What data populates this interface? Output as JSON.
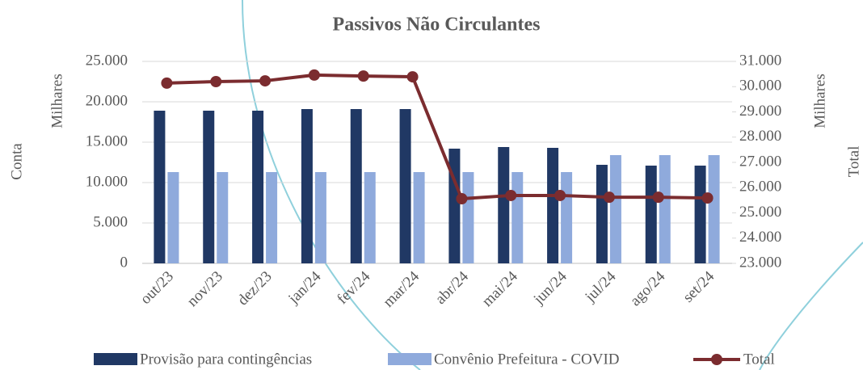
{
  "chart_data": {
    "type": "combo",
    "title": "Passivos Não Circulantes",
    "y_label": "Conta",
    "y_units": "Milhares",
    "y2_label": "Total",
    "y2_units": "Milhares",
    "categories": [
      "out/23",
      "nov/23",
      "dez/23",
      "jan/24",
      "fev/24",
      "mar/24",
      "abr/24",
      "mai/24",
      "jun/24",
      "jul/24",
      "ago/24",
      "set/24"
    ],
    "series": [
      {
        "name": "Provisão para contingências",
        "type": "bar",
        "color": "#203864",
        "values": [
          18900,
          18900,
          18900,
          19100,
          19100,
          19100,
          14200,
          14400,
          14300,
          12200,
          12100,
          12100
        ]
      },
      {
        "name": "Convênio Prefeitura - COVID",
        "type": "bar",
        "color": "#8faadc",
        "values": [
          11300,
          11300,
          11300,
          11300,
          11300,
          11300,
          11300,
          11300,
          11300,
          13400,
          13400,
          13400
        ]
      },
      {
        "name": "Total",
        "type": "line",
        "axis": "y2",
        "color": "#7b2c2f",
        "values": [
          30140,
          30200,
          30230,
          30460,
          30420,
          30390,
          25560,
          25690,
          25690,
          25620,
          25620,
          25590
        ]
      }
    ],
    "ylim": [
      0,
      25000
    ],
    "yticks": [
      0,
      {
        "value": 5000,
        "label": "5.000"
      },
      {
        "value": 10000,
        "label": "10.000"
      },
      {
        "value": 15000,
        "label": "15.000"
      },
      {
        "value": 20000,
        "label": "20.000"
      },
      {
        "value": 25000,
        "label": "25.000"
      }
    ],
    "y2lim": [
      23000,
      31000
    ],
    "y2ticks": [
      {
        "value": 23000,
        "label": "23.000"
      },
      {
        "value": 24000,
        "label": "24.000"
      },
      {
        "value": 25000,
        "label": "25.000"
      },
      {
        "value": 26000,
        "label": "26.000"
      },
      {
        "value": 27000,
        "label": "27.000"
      },
      {
        "value": 28000,
        "label": "28.000"
      },
      {
        "value": 29000,
        "label": "29.000"
      },
      {
        "value": 30000,
        "label": "30.000"
      },
      {
        "value": 31000,
        "label": "31.000"
      }
    ],
    "grid": true
  }
}
